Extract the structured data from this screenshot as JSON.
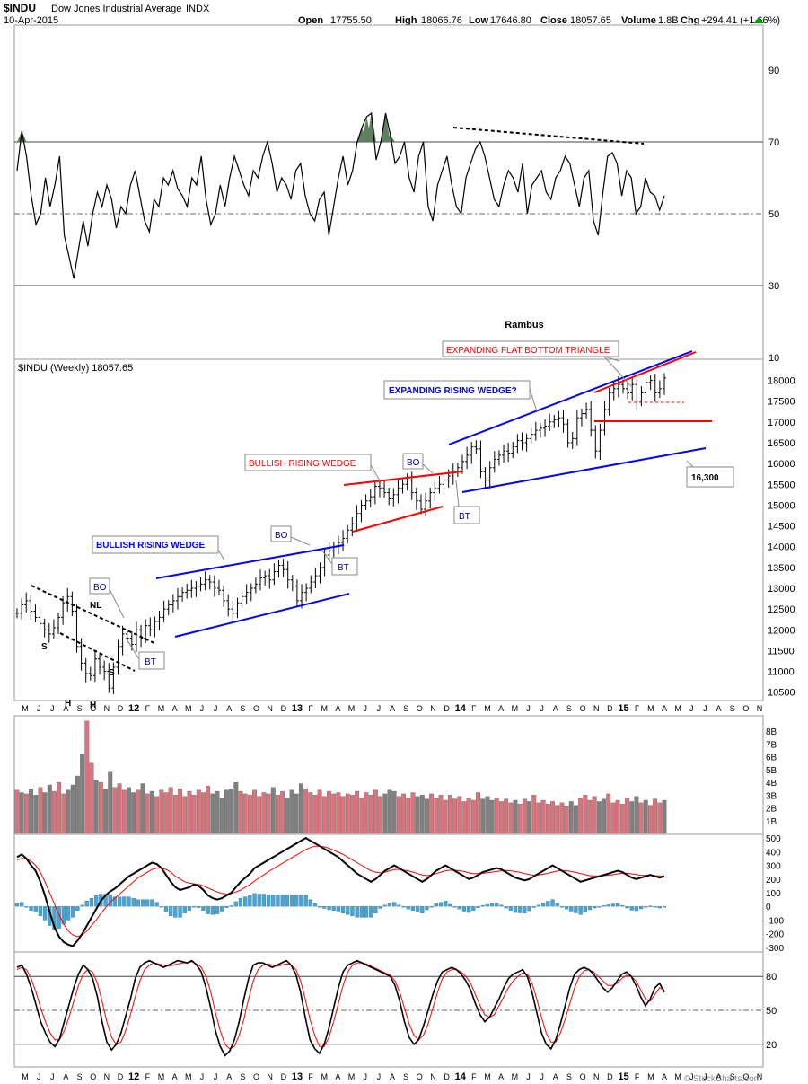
{
  "header": {
    "symbol": "$INDU",
    "name": "Dow Jones Industrial Average",
    "exchange": "INDX",
    "date": "10-Apr-2015",
    "open_label": "Open",
    "open": "17755.50",
    "high_label": "High",
    "high": "18066.76",
    "low_label": "Low",
    "low": "17646.80",
    "close_label": "Close",
    "close": "18057.65",
    "volume_label": "Volume",
    "volume": "1.8B",
    "chg_label": "Chg",
    "chg": "+294.41 (+1.66%)",
    "credit": "© StockCharts.com",
    "author": "Rambus"
  },
  "colors": {
    "blue": "#0000ff",
    "red": "#ff0000",
    "navy_text": "#00008b",
    "vol_up": "#d9737c",
    "vol_down": "#808080",
    "hist": "#4aa3d0",
    "rsi_fill": "#5f7f5f"
  },
  "chart_data": [
    {
      "type": "line",
      "panel": "RSI",
      "ylim": [
        10,
        100
      ],
      "yticks": [
        10,
        30,
        50,
        70,
        90
      ],
      "reference_lines": [
        30,
        50,
        70
      ],
      "values": [
        62,
        73,
        66,
        55,
        47,
        50,
        60,
        52,
        58,
        66,
        44,
        38,
        32,
        40,
        48,
        41,
        50,
        56,
        52,
        58,
        54,
        46,
        52,
        50,
        58,
        62,
        55,
        48,
        45,
        54,
        52,
        60,
        58,
        62,
        57,
        55,
        52,
        60,
        58,
        66,
        54,
        47,
        50,
        58,
        52,
        60,
        66,
        62,
        58,
        55,
        62,
        60,
        66,
        70,
        64,
        56,
        60,
        58,
        54,
        62,
        64,
        55,
        50,
        48,
        54,
        56,
        44,
        52,
        60,
        66,
        58,
        62,
        70,
        74,
        77,
        78,
        65,
        70,
        78,
        72,
        64,
        66,
        70,
        60,
        56,
        66,
        70,
        52,
        48,
        58,
        62,
        66,
        58,
        52,
        50,
        60,
        64,
        68,
        70,
        66,
        60,
        54,
        52,
        58,
        62,
        60,
        56,
        64,
        50,
        58,
        60,
        62,
        56,
        54,
        60,
        62,
        66,
        64,
        58,
        52,
        60,
        62,
        48,
        44,
        56,
        66,
        67,
        64,
        55,
        62,
        60,
        50,
        52,
        60,
        56,
        55,
        51,
        55
      ]
    },
    {
      "type": "bar",
      "panel": "Weekly price",
      "title": "$INDU (Weekly) 18057.65",
      "ylim": [
        10300,
        18400
      ],
      "yticks": [
        10500,
        11000,
        11500,
        12000,
        12500,
        13000,
        13500,
        14000,
        14500,
        15000,
        15500,
        16000,
        16500,
        17000,
        17500,
        18000
      ],
      "xticks": [
        "M",
        "J",
        "J",
        "A",
        "S",
        "O",
        "N",
        "D",
        "12",
        "F",
        "M",
        "A",
        "M",
        "J",
        "J",
        "A",
        "S",
        "O",
        "N",
        "D",
        "13",
        "F",
        "M",
        "A",
        "M",
        "J",
        "J",
        "A",
        "S",
        "O",
        "N",
        "D",
        "14",
        "F",
        "M",
        "A",
        "M",
        "J",
        "J",
        "A",
        "S",
        "O",
        "N",
        "D",
        "15",
        "F",
        "M",
        "A",
        "M",
        "J",
        "J",
        "A",
        "S",
        "O",
        "N"
      ],
      "closes": [
        12400,
        12600,
        12700,
        12450,
        12300,
        12150,
        12000,
        11900,
        12050,
        12300,
        12650,
        12800,
        12450,
        11600,
        11200,
        10950,
        10900,
        11300,
        11100,
        11000,
        10600,
        11100,
        11600,
        11900,
        11800,
        11650,
        12000,
        11800,
        12100,
        12000,
        12200,
        12300,
        12500,
        12600,
        12700,
        12800,
        12900,
        12950,
        13000,
        13050,
        13100,
        13200,
        13150,
        13000,
        12950,
        12700,
        12500,
        12400,
        12650,
        12800,
        12900,
        13000,
        13100,
        13250,
        13300,
        13200,
        13400,
        13550,
        13450,
        13200,
        13050,
        12700,
        12900,
        13000,
        13150,
        13300,
        13500,
        13800,
        13900,
        14000,
        14100,
        14200,
        14400,
        14550,
        14800,
        15000,
        15100,
        15200,
        15450,
        15400,
        15300,
        15150,
        15250,
        15400,
        15500,
        15600,
        15300,
        15100,
        14900,
        15100,
        15300,
        15400,
        15500,
        15600,
        15700,
        15800,
        15900,
        16050,
        16200,
        16400,
        16350,
        15800,
        15600,
        15900,
        16100,
        16200,
        16300,
        16250,
        16400,
        16550,
        16500,
        16600,
        16700,
        16800,
        16850,
        16900,
        17000,
        17050,
        17100,
        16950,
        16500,
        16600,
        17100,
        17200,
        17300,
        16800,
        16300,
        16800,
        17300,
        17700,
        17800,
        17900,
        17800,
        17700,
        17900,
        17500,
        17700,
        17950,
        18000,
        17700,
        17800,
        18057
      ]
    },
    {
      "type": "bar",
      "panel": "Volume",
      "ylim": [
        0,
        9
      ],
      "yticks": [
        "1B",
        "2B",
        "3B",
        "4B",
        "5B",
        "6B",
        "7B",
        "8B"
      ],
      "values": [
        3.4,
        3.2,
        3.1,
        3.5,
        3.0,
        3.6,
        3.2,
        3.8,
        3.3,
        4.0,
        3.1,
        3.4,
        3.8,
        4.5,
        6.2,
        8.8,
        5.5,
        4.2,
        4.0,
        3.5,
        4.8,
        3.6,
        3.9,
        3.4,
        3.6,
        3.2,
        3.4,
        3.9,
        3.1,
        3.3,
        2.9,
        3.4,
        3.2,
        3.6,
        3.0,
        3.5,
        2.9,
        3.3,
        3.0,
        3.4,
        3.2,
        3.7,
        3.1,
        3.3,
        2.8,
        3.4,
        3.5,
        4.0,
        3.3,
        3.1,
        3.0,
        3.4,
        2.9,
        3.2,
        3.1,
        3.6,
        3.0,
        3.3,
        2.8,
        3.4,
        3.1,
        3.9,
        3.5,
        3.2,
        3.0,
        3.4,
        2.9,
        3.3,
        3.1,
        3.2,
        2.9,
        3.1,
        3.0,
        3.3,
        2.8,
        3.2,
        3.0,
        3.4,
        2.9,
        3.1,
        3.4,
        3.3,
        2.9,
        3.1,
        2.8,
        3.2,
        2.9,
        3.0,
        2.7,
        3.1,
        2.8,
        3.0,
        2.6,
        3.0,
        2.7,
        2.9,
        2.5,
        2.8,
        2.6,
        3.2,
        2.7,
        2.9,
        2.6,
        2.8,
        2.5,
        2.7,
        2.4,
        2.6,
        2.3,
        2.7,
        2.5,
        3.0,
        2.4,
        2.6,
        2.3,
        2.5,
        2.2,
        2.4,
        2.1,
        2.5,
        2.2,
        2.8,
        3.0,
        2.6,
        2.9,
        2.5,
        2.7,
        3.1,
        2.4,
        2.6,
        2.3,
        2.8,
        2.5,
        2.9,
        2.4,
        2.6,
        2.2,
        2.7,
        2.4,
        2.6
      ],
      "up": [
        1,
        0,
        1,
        0,
        0,
        1,
        0,
        0,
        1,
        1,
        1,
        0,
        0,
        0,
        0,
        1,
        1,
        0,
        1,
        0,
        0,
        1,
        1,
        1,
        0,
        0,
        1,
        0,
        1,
        0,
        1,
        1,
        1,
        1,
        1,
        1,
        1,
        1,
        1,
        1,
        1,
        1,
        0,
        0,
        0,
        0,
        0,
        0,
        1,
        1,
        1,
        1,
        1,
        1,
        1,
        0,
        1,
        1,
        0,
        0,
        0,
        0,
        1,
        1,
        1,
        1,
        1,
        1,
        1,
        1,
        1,
        1,
        1,
        1,
        1,
        1,
        1,
        1,
        1,
        0,
        0,
        0,
        1,
        1,
        1,
        1,
        0,
        0,
        0,
        1,
        1,
        1,
        1,
        1,
        1,
        1,
        1,
        1,
        1,
        1,
        0,
        0,
        0,
        1,
        1,
        1,
        1,
        0,
        1,
        1,
        0,
        1,
        1,
        1,
        1,
        1,
        1,
        1,
        1,
        0,
        0,
        1,
        1,
        1,
        1,
        0,
        0,
        1,
        1,
        1,
        1,
        1,
        0,
        0,
        1,
        0,
        1,
        1,
        1,
        0,
        1,
        1
      ]
    },
    {
      "type": "line",
      "panel": "MACD",
      "ylim": [
        -320,
        520
      ],
      "yticks": [
        -300,
        -200,
        -100,
        0,
        100,
        200,
        300,
        400,
        500
      ],
      "series": [
        {
          "values": [
            360,
            380,
            350,
            300,
            260,
            180,
            80,
            -40,
            -150,
            -220,
            -260,
            -280,
            -290,
            -250,
            -200,
            -140,
            -80,
            -20,
            40,
            80,
            110,
            130,
            160,
            190,
            220,
            240,
            260,
            280,
            300,
            320,
            310,
            280,
            230,
            180,
            140,
            120,
            130,
            140,
            160,
            150,
            120,
            80,
            60,
            50,
            60,
            80,
            100,
            140,
            180,
            210,
            240,
            280,
            300,
            320,
            340,
            360,
            380,
            400,
            420,
            440,
            460,
            480,
            500,
            480,
            460,
            440,
            420,
            400,
            380,
            360,
            330,
            300,
            270,
            240,
            220,
            200,
            180,
            200,
            230,
            260,
            280,
            300,
            280,
            260,
            240,
            220,
            200,
            180,
            200,
            230,
            260,
            280,
            300,
            280,
            260,
            240,
            220,
            200,
            210,
            230,
            250,
            260,
            270,
            280,
            270,
            250,
            230,
            210,
            200,
            190,
            200,
            220,
            240,
            260,
            280,
            300,
            280,
            260,
            240,
            220,
            200,
            180,
            190,
            200,
            210,
            220,
            230,
            240,
            250,
            260,
            250,
            230,
            210,
            200,
            210,
            220,
            230,
            220,
            210,
            220
          ]
        },
        {
          "values": [
            340,
            350,
            350,
            330,
            300,
            250,
            180,
            100,
            20,
            -60,
            -130,
            -180,
            -210,
            -220,
            -210,
            -180,
            -140,
            -100,
            -50,
            -10,
            30,
            60,
            90,
            120,
            150,
            180,
            210,
            230,
            250,
            270,
            280,
            280,
            270,
            250,
            220,
            200,
            180,
            170,
            165,
            160,
            150,
            135,
            120,
            105,
            95,
            90,
            95,
            105,
            120,
            140,
            160,
            185,
            210,
            230,
            255,
            275,
            295,
            315,
            335,
            355,
            375,
            395,
            415,
            430,
            440,
            440,
            435,
            425,
            410,
            395,
            380,
            360,
            340,
            320,
            300,
            280,
            260,
            250,
            245,
            250,
            260,
            270,
            270,
            265,
            260,
            250,
            240,
            230,
            225,
            230,
            240,
            250,
            260,
            265,
            265,
            260,
            255,
            245,
            240,
            240,
            242,
            246,
            250,
            255,
            260,
            262,
            260,
            255,
            248,
            240,
            232,
            228,
            230,
            235,
            242,
            250,
            258,
            262,
            260,
            255,
            248,
            240,
            232,
            225,
            222,
            222,
            224,
            228,
            232,
            238,
            242,
            242,
            238,
            232,
            228,
            226,
            226,
            224,
            222,
            220
          ]
        }
      ]
    },
    {
      "type": "line",
      "panel": "Stochastics",
      "ylim": [
        0,
        100
      ],
      "yticks": [
        20,
        50,
        80
      ],
      "reference_lines": [
        20,
        50,
        80
      ],
      "series": [
        {
          "values": [
            88,
            90,
            82,
            70,
            55,
            40,
            30,
            22,
            18,
            25,
            40,
            55,
            70,
            82,
            90,
            86,
            78,
            62,
            40,
            22,
            15,
            20,
            30,
            45,
            60,
            78,
            88,
            92,
            94,
            92,
            90,
            88,
            90,
            92,
            94,
            93,
            92,
            94,
            90,
            84,
            70,
            52,
            32,
            18,
            10,
            14,
            24,
            40,
            60,
            78,
            90,
            92,
            92,
            90,
            88,
            90,
            92,
            94,
            90,
            82,
            66,
            44,
            24,
            16,
            12,
            20,
            34,
            52,
            70,
            84,
            90,
            92,
            94,
            92,
            90,
            88,
            86,
            84,
            82,
            80,
            72,
            58,
            40,
            26,
            20,
            24,
            36,
            50,
            64,
            76,
            84,
            86,
            88,
            86,
            82,
            76,
            68,
            56,
            46,
            40,
            44,
            52,
            60,
            70,
            78,
            82,
            84,
            86,
            80,
            66,
            48,
            30,
            20,
            16,
            24,
            38,
            54,
            70,
            82,
            86,
            88,
            86,
            82,
            76,
            70,
            66,
            70,
            76,
            82,
            84,
            80,
            72,
            62,
            54,
            60,
            70,
            74,
            66
          ]
        },
        {
          "values": [
            86,
            88,
            86,
            78,
            66,
            52,
            40,
            30,
            24,
            24,
            32,
            44,
            58,
            72,
            82,
            86,
            84,
            74,
            58,
            40,
            26,
            20,
            22,
            32,
            46,
            62,
            76,
            86,
            90,
            92,
            91,
            90,
            89,
            90,
            91,
            92,
            92,
            93,
            91,
            88,
            80,
            66,
            48,
            32,
            20,
            16,
            18,
            28,
            42,
            60,
            76,
            86,
            90,
            91,
            90,
            89,
            90,
            91,
            90,
            86,
            76,
            60,
            42,
            28,
            18,
            18,
            26,
            40,
            56,
            72,
            84,
            90,
            92,
            92,
            91,
            89,
            87,
            85,
            83,
            81,
            76,
            66,
            52,
            38,
            28,
            24,
            28,
            38,
            52,
            66,
            78,
            84,
            86,
            86,
            84,
            80,
            74,
            64,
            54,
            46,
            44,
            46,
            54,
            62,
            70,
            76,
            80,
            83,
            82,
            74,
            60,
            44,
            30,
            22,
            22,
            30,
            42,
            56,
            70,
            80,
            85,
            86,
            84,
            80,
            76,
            72,
            72,
            74,
            78,
            81,
            80,
            76,
            68,
            60,
            58,
            64,
            70,
            68
          ]
        }
      ]
    }
  ],
  "annotations": {
    "expanding_flat_bottom_triangle": "EXPANDING FLAT BOTTOM TRIANGLE",
    "expanding_rising_wedge": "EXPANDING RISING WEDGE?",
    "bullish_rising_wedge_red": "BULLISH RISING WEDGE",
    "bullish_rising_wedge_blue": "BULLISH RISING WEDGE",
    "bo": "BO",
    "bt": "BT",
    "nl": "NL",
    "s": "S",
    "h": "H",
    "target": "16,300"
  }
}
